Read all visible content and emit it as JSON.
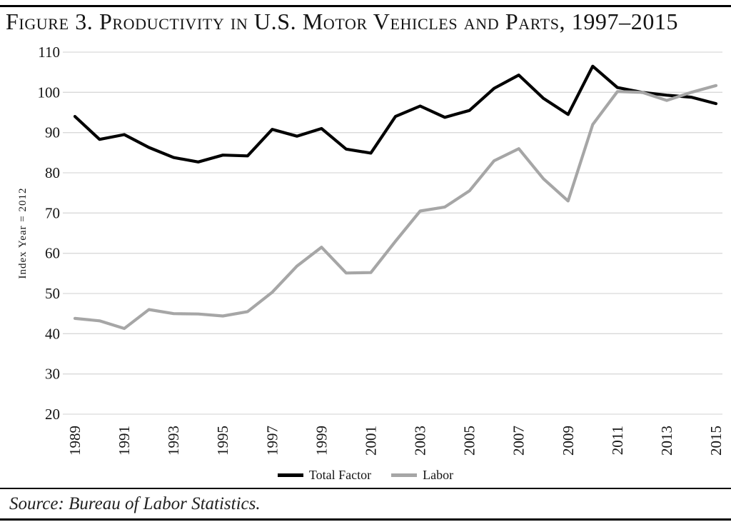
{
  "page": {
    "title": "Figure 3. Productivity in U.S. Motor Vehicles and Parts, 1997–2015",
    "source": "Source: Bureau of Labor Statistics."
  },
  "colors": {
    "gridline": "#d9d9d9",
    "text": "#141414",
    "rule": "#000000",
    "total_factor": "#000000",
    "labor": "#a6a6a6"
  },
  "chart_data": {
    "type": "line",
    "title": "Figure 3. Productivity in U.S. Motor Vehicles and Parts, 1997–2015",
    "xlabel": "",
    "ylabel": "Index Year = 2012",
    "ylim": [
      20,
      110
    ],
    "ytick_step": 10,
    "grid": "horizontal-light",
    "legend_position": "bottom",
    "x": [
      1989,
      1990,
      1991,
      1992,
      1993,
      1994,
      1995,
      1996,
      1997,
      1998,
      1999,
      2000,
      2001,
      2002,
      2003,
      2004,
      2005,
      2006,
      2007,
      2008,
      2009,
      2010,
      2011,
      2012,
      2013,
      2014,
      2015
    ],
    "xticks": [
      1989,
      1991,
      1993,
      1995,
      1997,
      1999,
      2001,
      2003,
      2005,
      2007,
      2009,
      2011,
      2013,
      2015
    ],
    "series": [
      {
        "name": "Total Factor",
        "color": "#000000",
        "values": [
          94.0,
          88.3,
          89.5,
          86.3,
          83.8,
          82.7,
          84.4,
          84.2,
          90.8,
          89.1,
          91.0,
          85.9,
          84.9,
          94.0,
          96.6,
          93.8,
          95.5,
          101.0,
          104.3,
          98.5,
          94.5,
          106.5,
          101.2,
          100.0,
          99.3,
          98.8,
          97.2
        ]
      },
      {
        "name": "Labor",
        "color": "#a6a6a6",
        "values": [
          43.8,
          43.2,
          41.3,
          46.0,
          45.0,
          44.9,
          44.4,
          45.5,
          50.3,
          56.8,
          61.5,
          55.1,
          55.2,
          63.0,
          70.5,
          71.5,
          75.5,
          83.0,
          86.0,
          78.5,
          73.0,
          92.0,
          100.2,
          100.0,
          98.0,
          100.0,
          101.7
        ]
      }
    ]
  }
}
